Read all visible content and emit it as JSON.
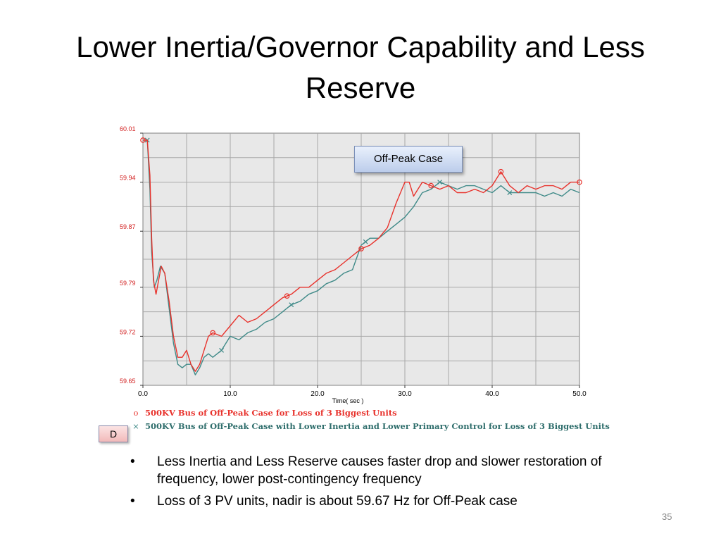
{
  "slide": {
    "title_line1": "Lower Inertia/Governor Capability and Less",
    "title_line2": "Reserve",
    "caption": "Off-Peak Case",
    "d_label": "D",
    "bullets": [
      "Less Inertia and Less Reserve causes faster drop and slower restoration of frequency, lower post-contingency frequency",
      "Loss of 3 PV units, nadir is about 59.67 Hz for Off-Peak case"
    ],
    "page_number": "35"
  },
  "colors": {
    "red_series": "#e8322c",
    "teal_series": "#3f8a88",
    "tick_label": "#d21e1e",
    "grid": "#a8a8a8",
    "plot_bg": "#e8e8e8"
  },
  "chart_data": {
    "type": "line",
    "xlabel": "Time( sec )",
    "ylabel": "",
    "xlim": [
      0,
      50
    ],
    "ylim": [
      59.65,
      60.01
    ],
    "xticks": [
      0,
      10,
      20,
      30,
      40,
      50
    ],
    "xtick_labels": [
      "0.0",
      "10.0",
      "20.0",
      "30.0",
      "40.0",
      "50.0"
    ],
    "yticks": [
      60.01,
      59.94,
      59.87,
      59.79,
      59.72,
      59.65
    ],
    "ytick_labels": [
      "60.01",
      "59.94",
      "59.87",
      "59.79",
      "59.72",
      "59.65"
    ],
    "grid": true,
    "legend_position": "bottom",
    "series": [
      {
        "name": "500KV Bus of Off-Peak Case for Loss of 3 Biggest Units",
        "marker": "o",
        "marker_glyph": "o",
        "color": "#e8322c",
        "markers_x": [
          0,
          8,
          16.5,
          25,
          33,
          41,
          50
        ],
        "x": [
          0,
          0.5,
          0.8,
          1.0,
          1.2,
          1.5,
          1.8,
          2.1,
          2.5,
          3.0,
          3.5,
          4.0,
          4.5,
          5.0,
          5.5,
          6.0,
          6.5,
          7.0,
          7.5,
          8.0,
          9.0,
          10.0,
          11.0,
          12.0,
          13.0,
          14.0,
          15.0,
          16.0,
          17.0,
          18.0,
          19.0,
          20.0,
          21.0,
          22.0,
          23.0,
          24.0,
          25.0,
          26.0,
          27.0,
          28.0,
          29.0,
          30.0,
          30.5,
          31.0,
          32.0,
          33.0,
          34.0,
          35.0,
          36.0,
          37.0,
          38.0,
          39.0,
          40.0,
          41.0,
          42.0,
          43.0,
          44.0,
          45.0,
          46.0,
          47.0,
          48.0,
          49.0,
          50.0
        ],
        "values": [
          60.0,
          60.0,
          59.95,
          59.86,
          59.8,
          59.78,
          59.8,
          59.82,
          59.81,
          59.77,
          59.72,
          59.69,
          59.69,
          59.7,
          59.68,
          59.67,
          59.68,
          59.7,
          59.72,
          59.725,
          59.72,
          59.735,
          59.75,
          59.74,
          59.745,
          59.755,
          59.765,
          59.775,
          59.78,
          59.79,
          59.79,
          59.8,
          59.81,
          59.815,
          59.825,
          59.835,
          59.845,
          59.85,
          59.86,
          59.875,
          59.91,
          59.94,
          59.94,
          59.92,
          59.94,
          59.935,
          59.93,
          59.935,
          59.925,
          59.925,
          59.93,
          59.925,
          59.935,
          59.955,
          59.935,
          59.925,
          59.935,
          59.93,
          59.935,
          59.935,
          59.93,
          59.94,
          59.94
        ]
      },
      {
        "name": "500KV Bus of Off-Peak Case with Lower Inertia and Lower Primary Control for Loss of 3 Biggest Units",
        "marker": "x",
        "marker_glyph": "×",
        "color": "#3f8a88",
        "markers_x": [
          0.5,
          9,
          17,
          25.5,
          34,
          42
        ],
        "x": [
          0,
          0.5,
          0.8,
          1.0,
          1.3,
          1.6,
          2.0,
          2.5,
          3.0,
          3.5,
          4.0,
          4.5,
          5.0,
          5.5,
          6.0,
          6.5,
          7.0,
          7.5,
          8.0,
          9.0,
          10.0,
          11.0,
          12.0,
          13.0,
          14.0,
          15.0,
          16.0,
          17.0,
          18.0,
          19.0,
          20.0,
          21.0,
          22.0,
          23.0,
          24.0,
          25.0,
          26.0,
          27.0,
          28.0,
          29.0,
          30.0,
          31.0,
          32.0,
          33.0,
          34.0,
          35.0,
          36.0,
          37.0,
          38.0,
          39.0,
          40.0,
          41.0,
          42.0,
          43.0,
          44.0,
          45.0,
          46.0,
          47.0,
          48.0,
          49.0,
          50.0
        ],
        "values": [
          60.0,
          60.0,
          59.93,
          59.84,
          59.79,
          59.8,
          59.82,
          59.81,
          59.76,
          59.71,
          59.68,
          59.675,
          59.68,
          59.68,
          59.665,
          59.675,
          59.69,
          59.695,
          59.69,
          59.7,
          59.72,
          59.715,
          59.725,
          59.73,
          59.74,
          59.745,
          59.755,
          59.765,
          59.77,
          59.78,
          59.785,
          59.795,
          59.8,
          59.81,
          59.815,
          59.85,
          59.86,
          59.86,
          59.87,
          59.88,
          59.89,
          59.905,
          59.925,
          59.93,
          59.94,
          59.935,
          59.93,
          59.935,
          59.935,
          59.93,
          59.925,
          59.935,
          59.925,
          59.925,
          59.925,
          59.925,
          59.92,
          59.925,
          59.92,
          59.93,
          59.925
        ]
      }
    ]
  }
}
